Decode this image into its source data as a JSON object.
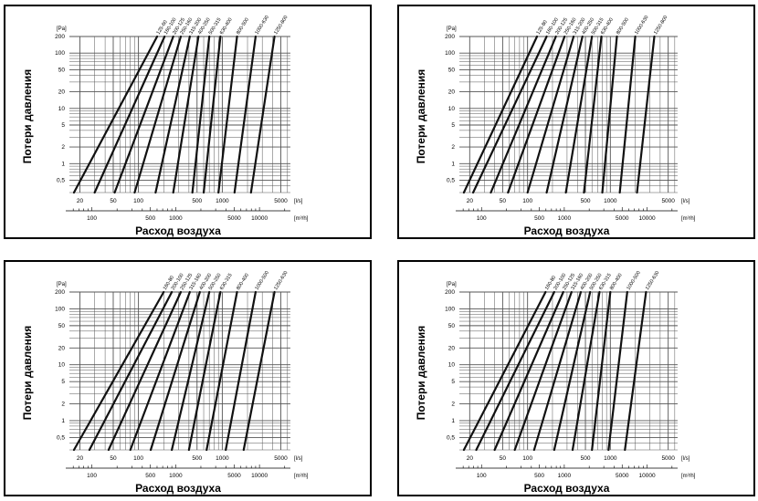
{
  "chart_data": [
    {
      "type": "line",
      "ylabel": "Потери давления",
      "xlabel": "Расход воздуха",
      "y_unit": "[Pa]",
      "x_unit": "[l/s]",
      "x2_unit": "[m³/h]",
      "y_scale": "log",
      "x_scale": "log",
      "ylim": [
        0.3,
        200
      ],
      "xlim": [
        15,
        6500
      ],
      "y_ticks": [
        "200",
        "100",
        "50",
        "20",
        "10",
        "5",
        "2",
        "1",
        "0,5"
      ],
      "x_ticks": [
        "20",
        "50",
        "100",
        "500",
        "1000",
        "5000"
      ],
      "x2_ticks": [
        "100",
        "500",
        "1000",
        "5000",
        "10000"
      ],
      "grid": true,
      "series": [
        {
          "name": "125-60",
          "x": [
            17,
            167
          ]
        },
        {
          "name": "160-100",
          "x": [
            30,
            205
          ]
        },
        {
          "name": "200-125",
          "x": [
            52,
            260
          ]
        },
        {
          "name": "250-160",
          "x": [
            90,
            320
          ]
        },
        {
          "name": "315-200",
          "x": [
            160,
            410
          ]
        },
        {
          "name": "400-250",
          "x": [
            260,
            520
          ]
        },
        {
          "name": "500-315",
          "x": [
            440,
            700
          ]
        },
        {
          "name": "630-400",
          "x": [
            600,
            950
          ]
        },
        {
          "name": "800-500",
          "x": [
            900,
            1500
          ]
        },
        {
          "name": "1000-630",
          "x": [
            1400,
            2500
          ]
        },
        {
          "name": "1250-800",
          "x": [
            2200,
            4200
          ]
        }
      ]
    },
    {
      "type": "line",
      "ylabel": "Потери давления",
      "xlabel": "Расход воздуха",
      "y_unit": "[Pa]",
      "x_unit": "[l/s]",
      "x2_unit": "[m³/h]",
      "y_scale": "log",
      "x_scale": "log",
      "ylim": [
        0.3,
        200
      ],
      "xlim": [
        15,
        6500
      ],
      "y_ticks": [
        "200",
        "100",
        "50",
        "20",
        "10",
        "5",
        "2",
        "1",
        "0,5"
      ],
      "x_ticks": [
        "20",
        "50",
        "100",
        "500",
        "1000",
        "5000"
      ],
      "x2_ticks": [
        "100",
        "500",
        "1000",
        "5000",
        "10000"
      ],
      "grid": true,
      "series": [
        {
          "name": "125-80",
          "x": [
            17,
            130
          ]
        },
        {
          "name": "160-100",
          "x": [
            22,
            170
          ]
        },
        {
          "name": "200-125",
          "x": [
            36,
            220
          ]
        },
        {
          "name": "250-160",
          "x": [
            58,
            280
          ]
        },
        {
          "name": "315-200",
          "x": [
            100,
            360
          ]
        },
        {
          "name": "400-250",
          "x": [
            170,
            460
          ]
        },
        {
          "name": "500-315",
          "x": [
            290,
            600
          ]
        },
        {
          "name": "630-400",
          "x": [
            480,
            780
          ]
        },
        {
          "name": "800-500",
          "x": [
            800,
            1200
          ]
        },
        {
          "name": "1000-630",
          "x": [
            1300,
            2000
          ]
        },
        {
          "name": "1250-800",
          "x": [
            2100,
            3400
          ]
        }
      ]
    },
    {
      "type": "line",
      "ylabel": "Потери давления",
      "xlabel": "Расход воздуха",
      "y_unit": "[Pa]",
      "x_unit": "[l/s]",
      "x2_unit": "[m³/h]",
      "y_scale": "log",
      "x_scale": "log",
      "ylim": [
        0.3,
        200
      ],
      "xlim": [
        15,
        6500
      ],
      "y_ticks": [
        "200",
        "100",
        "50",
        "20",
        "10",
        "5",
        "2",
        "1",
        "0,5"
      ],
      "x_ticks": [
        "20",
        "50",
        "100",
        "500",
        "1000",
        "5000"
      ],
      "x2_ticks": [
        "100",
        "500",
        "1000",
        "5000",
        "10000"
      ],
      "grid": true,
      "series": [
        {
          "name": "160-80",
          "x": [
            17,
            200
          ]
        },
        {
          "name": "200-100",
          "x": [
            26,
            250
          ]
        },
        {
          "name": "250-125",
          "x": [
            44,
            320
          ]
        },
        {
          "name": "315-160",
          "x": [
            80,
            410
          ]
        },
        {
          "name": "400-200",
          "x": [
            140,
            540
          ]
        },
        {
          "name": "500-250",
          "x": [
            250,
            700
          ]
        },
        {
          "name": "630-315",
          "x": [
            400,
            950
          ]
        },
        {
          "name": "800-400",
          "x": [
            650,
            1500
          ]
        },
        {
          "name": "1000-500",
          "x": [
            1100,
            2500
          ]
        },
        {
          "name": "1250-630",
          "x": [
            1800,
            4200
          ]
        }
      ]
    },
    {
      "type": "line",
      "ylabel": "Потери давления",
      "xlabel": "Расход воздуха",
      "y_unit": "[Pa]",
      "x_unit": "[l/s]",
      "x2_unit": "[m³/h]",
      "y_scale": "log",
      "x_scale": "log",
      "ylim": [
        0.3,
        200
      ],
      "xlim": [
        15,
        6500
      ],
      "y_ticks": [
        "200",
        "100",
        "50",
        "20",
        "10",
        "5",
        "2",
        "1",
        "0,5"
      ],
      "x_ticks": [
        "20",
        "50",
        "100",
        "500",
        "1000",
        "5000"
      ],
      "x2_ticks": [
        "100",
        "500",
        "1000",
        "5000",
        "10000"
      ],
      "grid": true,
      "series": [
        {
          "name": "160-80",
          "x": [
            17,
            165
          ]
        },
        {
          "name": "200-100",
          "x": [
            24,
            210
          ]
        },
        {
          "name": "250-125",
          "x": [
            40,
            270
          ]
        },
        {
          "name": "315-160",
          "x": [
            70,
            340
          ]
        },
        {
          "name": "400-200",
          "x": [
            120,
            440
          ]
        },
        {
          "name": "500-250",
          "x": [
            210,
            570
          ]
        },
        {
          "name": "630-315",
          "x": [
            350,
            740
          ]
        },
        {
          "name": "800-400",
          "x": [
            600,
            1000
          ]
        },
        {
          "name": "1000-500",
          "x": [
            950,
            1600
          ]
        },
        {
          "name": "1250-630",
          "x": [
            1500,
            2700
          ]
        }
      ]
    }
  ]
}
